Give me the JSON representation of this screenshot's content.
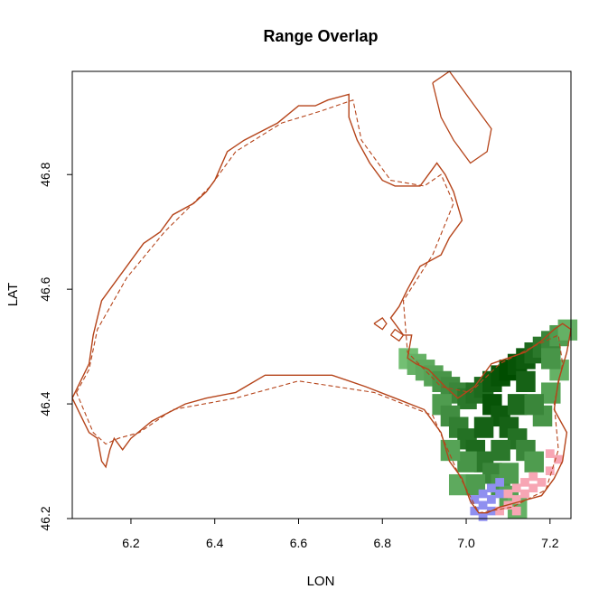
{
  "chart_data": {
    "type": "heatmap",
    "title": "Range Overlap",
    "xlabel": "LON",
    "ylabel": "LAT",
    "xlim": [
      6.06,
      7.25
    ],
    "ylim": [
      46.2,
      46.98
    ],
    "x_ticks": [
      6.2,
      6.4,
      6.6,
      6.8,
      7.0,
      7.2
    ],
    "x_tick_labels": [
      "6.2",
      "6.4",
      "6.6",
      "6.8",
      "7.0",
      "7.2"
    ],
    "y_ticks": [
      46.2,
      46.4,
      46.6,
      46.8
    ],
    "y_tick_labels": [
      "46.2",
      "46.4",
      "46.6",
      "46.8"
    ],
    "colors": {
      "border": "#b5441a",
      "suitability_low": "#90dc90",
      "suitability_high": "#004d00",
      "overlap_blue": "#8f8ff0",
      "overlap_pink": "#f7a6b4"
    },
    "boundary_solid": [
      [
        6.06,
        46.41
      ],
      [
        6.08,
        46.44
      ],
      [
        6.1,
        46.47
      ],
      [
        6.11,
        46.52
      ],
      [
        6.12,
        46.55
      ],
      [
        6.13,
        46.58
      ],
      [
        6.18,
        46.63
      ],
      [
        6.21,
        46.66
      ],
      [
        6.23,
        46.68
      ],
      [
        6.27,
        46.7
      ],
      [
        6.3,
        46.73
      ],
      [
        6.35,
        46.75
      ],
      [
        6.38,
        46.77
      ],
      [
        6.4,
        46.79
      ],
      [
        6.43,
        46.84
      ],
      [
        6.47,
        46.86
      ],
      [
        6.55,
        46.89
      ],
      [
        6.6,
        46.92
      ],
      [
        6.64,
        46.92
      ],
      [
        6.67,
        46.93
      ],
      [
        6.72,
        46.94
      ],
      [
        6.72,
        46.9
      ],
      [
        6.74,
        46.86
      ],
      [
        6.77,
        46.82
      ],
      [
        6.8,
        46.79
      ],
      [
        6.83,
        46.78
      ],
      [
        6.87,
        46.78
      ],
      [
        6.89,
        46.78
      ],
      [
        6.91,
        46.8
      ],
      [
        6.93,
        46.82
      ],
      [
        6.95,
        46.8
      ],
      [
        6.97,
        46.77
      ],
      [
        6.99,
        46.72
      ],
      [
        6.96,
        46.69
      ],
      [
        6.94,
        46.66
      ],
      [
        6.89,
        46.64
      ],
      [
        6.86,
        46.6
      ],
      [
        6.84,
        46.57
      ],
      [
        6.82,
        46.55
      ],
      [
        6.85,
        46.52
      ],
      [
        6.87,
        46.52
      ],
      [
        6.86,
        46.48
      ],
      [
        6.88,
        46.47
      ],
      [
        6.91,
        46.46
      ],
      [
        6.95,
        46.43
      ],
      [
        6.98,
        46.41
      ],
      [
        7.02,
        46.43
      ],
      [
        7.06,
        46.47
      ],
      [
        7.1,
        46.48
      ],
      [
        7.14,
        46.49
      ],
      [
        7.18,
        46.51
      ],
      [
        7.21,
        46.53
      ],
      [
        7.23,
        46.54
      ],
      [
        7.25,
        46.53
      ],
      [
        7.24,
        46.49
      ],
      [
        7.22,
        46.44
      ],
      [
        7.21,
        46.39
      ],
      [
        7.24,
        46.35
      ],
      [
        7.23,
        46.3
      ],
      [
        7.21,
        46.27
      ],
      [
        7.18,
        46.24
      ],
      [
        7.13,
        46.23
      ],
      [
        7.08,
        46.22
      ],
      [
        7.05,
        46.21
      ],
      [
        7.03,
        46.21
      ],
      [
        7.01,
        46.23
      ],
      [
        6.99,
        46.27
      ],
      [
        6.96,
        46.3
      ],
      [
        6.94,
        46.35
      ],
      [
        6.9,
        46.39
      ],
      [
        6.83,
        46.41
      ],
      [
        6.76,
        46.43
      ],
      [
        6.68,
        46.45
      ],
      [
        6.6,
        46.45
      ],
      [
        6.52,
        46.45
      ],
      [
        6.45,
        46.42
      ],
      [
        6.38,
        46.41
      ],
      [
        6.33,
        46.4
      ],
      [
        6.25,
        46.37
      ],
      [
        6.2,
        46.34
      ],
      [
        6.18,
        46.32
      ],
      [
        6.16,
        46.34
      ],
      [
        6.15,
        46.32
      ],
      [
        6.14,
        46.29
      ],
      [
        6.13,
        46.3
      ],
      [
        6.12,
        46.34
      ],
      [
        6.1,
        46.35
      ],
      [
        6.08,
        46.38
      ],
      [
        6.06,
        46.41
      ]
    ],
    "boundary_dashed": [
      [
        6.07,
        46.42
      ],
      [
        6.1,
        46.46
      ],
      [
        6.12,
        46.53
      ],
      [
        6.19,
        46.62
      ],
      [
        6.28,
        46.7
      ],
      [
        6.39,
        46.78
      ],
      [
        6.45,
        46.84
      ],
      [
        6.56,
        46.89
      ],
      [
        6.65,
        46.91
      ],
      [
        6.73,
        46.93
      ],
      [
        6.75,
        46.86
      ],
      [
        6.82,
        46.79
      ],
      [
        6.9,
        46.78
      ],
      [
        6.94,
        46.8
      ],
      [
        6.97,
        46.75
      ],
      [
        6.92,
        46.66
      ],
      [
        6.85,
        46.58
      ],
      [
        6.86,
        46.49
      ],
      [
        6.94,
        46.43
      ],
      [
        7.01,
        46.42
      ],
      [
        7.08,
        46.47
      ],
      [
        7.16,
        46.5
      ],
      [
        7.22,
        46.52
      ],
      [
        7.23,
        46.47
      ],
      [
        7.21,
        46.4
      ],
      [
        7.22,
        46.32
      ],
      [
        7.19,
        46.25
      ],
      [
        7.11,
        46.22
      ],
      [
        7.03,
        46.21
      ],
      [
        6.98,
        46.28
      ],
      [
        6.92,
        46.38
      ],
      [
        6.78,
        46.42
      ],
      [
        6.6,
        46.44
      ],
      [
        6.45,
        46.41
      ],
      [
        6.3,
        46.39
      ],
      [
        6.22,
        46.35
      ],
      [
        6.17,
        46.34
      ],
      [
        6.14,
        46.33
      ],
      [
        6.11,
        46.35
      ],
      [
        6.07,
        46.42
      ]
    ],
    "islands": [
      [
        [
          6.78,
          46.54
        ],
        [
          6.8,
          46.53
        ],
        [
          6.81,
          46.54
        ],
        [
          6.8,
          46.55
        ],
        [
          6.78,
          46.54
        ]
      ],
      [
        [
          6.82,
          46.52
        ],
        [
          6.84,
          46.51
        ],
        [
          6.85,
          46.52
        ],
        [
          6.83,
          46.53
        ],
        [
          6.82,
          46.52
        ]
      ],
      [
        [
          6.92,
          46.96
        ],
        [
          6.96,
          46.98
        ],
        [
          6.99,
          46.95
        ],
        [
          7.02,
          46.92
        ],
        [
          7.06,
          46.88
        ],
        [
          7.05,
          46.84
        ],
        [
          7.01,
          46.82
        ],
        [
          6.97,
          46.86
        ],
        [
          6.94,
          46.9
        ],
        [
          6.92,
          46.96
        ]
      ]
    ],
    "suitability_cells": [
      [
        6.86,
        46.48,
        0.2
      ],
      [
        6.88,
        46.47,
        0.3
      ],
      [
        6.9,
        46.46,
        0.35
      ],
      [
        6.92,
        46.45,
        0.4
      ],
      [
        6.94,
        46.44,
        0.5
      ],
      [
        6.96,
        46.43,
        0.55
      ],
      [
        6.98,
        46.42,
        0.6
      ],
      [
        7.0,
        46.41,
        0.7
      ],
      [
        7.02,
        46.42,
        0.75
      ],
      [
        7.04,
        46.43,
        0.8
      ],
      [
        7.06,
        46.44,
        0.9
      ],
      [
        7.08,
        46.45,
        0.95
      ],
      [
        7.1,
        46.46,
        1.0
      ],
      [
        7.12,
        46.47,
        0.95
      ],
      [
        7.14,
        46.48,
        0.9
      ],
      [
        7.16,
        46.49,
        0.8
      ],
      [
        7.18,
        46.5,
        0.7
      ],
      [
        7.2,
        46.51,
        0.6
      ],
      [
        7.22,
        46.52,
        0.45
      ],
      [
        7.24,
        46.53,
        0.3
      ],
      [
        6.94,
        46.4,
        0.45
      ],
      [
        6.96,
        46.38,
        0.55
      ],
      [
        6.98,
        46.36,
        0.65
      ],
      [
        7.0,
        46.34,
        0.75
      ],
      [
        7.02,
        46.32,
        0.8
      ],
      [
        7.04,
        46.3,
        0.7
      ],
      [
        7.06,
        46.28,
        0.6
      ],
      [
        7.08,
        46.26,
        0.5
      ],
      [
        7.1,
        46.24,
        0.4
      ],
      [
        7.12,
        46.22,
        0.3
      ],
      [
        7.06,
        46.4,
        0.95
      ],
      [
        7.08,
        46.38,
        0.9
      ],
      [
        7.1,
        46.36,
        0.85
      ],
      [
        7.12,
        46.34,
        0.75
      ],
      [
        7.14,
        46.32,
        0.6
      ],
      [
        7.16,
        46.3,
        0.45
      ],
      [
        7.18,
        46.38,
        0.5
      ],
      [
        7.2,
        46.42,
        0.4
      ],
      [
        7.22,
        46.46,
        0.3
      ],
      [
        7.14,
        46.44,
        0.85
      ],
      [
        7.12,
        46.4,
        0.8
      ],
      [
        7.16,
        46.4,
        0.6
      ],
      [
        7.0,
        46.3,
        0.5
      ],
      [
        6.98,
        46.26,
        0.35
      ],
      [
        7.02,
        46.26,
        0.45
      ],
      [
        7.04,
        46.36,
        0.85
      ],
      [
        6.96,
        46.32,
        0.4
      ],
      [
        7.08,
        46.32,
        0.7
      ],
      [
        7.1,
        46.28,
        0.45
      ],
      [
        7.2,
        46.48,
        0.5
      ]
    ],
    "overlap_blue_cells": [
      [
        7.02,
        46.21
      ],
      [
        7.04,
        46.22
      ],
      [
        7.06,
        46.23
      ],
      [
        7.04,
        46.24
      ],
      [
        7.06,
        46.25
      ],
      [
        7.08,
        46.26
      ],
      [
        7.02,
        46.23
      ],
      [
        7.08,
        46.24
      ],
      [
        7.06,
        46.21
      ],
      [
        7.04,
        46.2
      ]
    ],
    "overlap_pink_cells": [
      [
        7.1,
        46.22
      ],
      [
        7.12,
        46.23
      ],
      [
        7.14,
        46.24
      ],
      [
        7.16,
        46.25
      ],
      [
        7.12,
        46.25
      ],
      [
        7.1,
        46.24
      ],
      [
        7.14,
        46.26
      ],
      [
        7.16,
        46.27
      ],
      [
        7.18,
        46.26
      ],
      [
        7.2,
        46.28
      ],
      [
        7.22,
        46.3
      ],
      [
        7.2,
        46.31
      ],
      [
        7.08,
        46.21
      ],
      [
        7.12,
        46.21
      ]
    ]
  }
}
